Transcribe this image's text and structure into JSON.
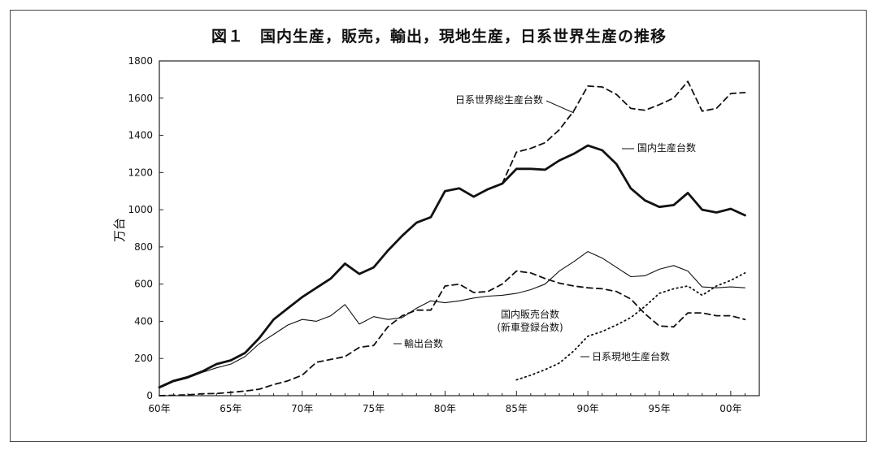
{
  "figure": {
    "title": "図１　国内生産，販売，輸出，現地生産，日系世界生産の推移"
  },
  "chart_data": {
    "type": "line",
    "ylabel": "万台",
    "ylim": [
      0,
      1800
    ],
    "y_ticks": [
      "0",
      "200",
      "400",
      "600",
      "800",
      "1000",
      "1200",
      "1400",
      "1600",
      "1800"
    ],
    "xlim": [
      1960,
      2002
    ],
    "x_ticks": [
      {
        "year": 1960,
        "label": "60年"
      },
      {
        "year": 1965,
        "label": "65年"
      },
      {
        "year": 1970,
        "label": "70年"
      },
      {
        "year": 1975,
        "label": "75年"
      },
      {
        "year": 1980,
        "label": "80年"
      },
      {
        "year": 1985,
        "label": "85年"
      },
      {
        "year": 1990,
        "label": "90年"
      },
      {
        "year": 1995,
        "label": "95年"
      },
      {
        "year": 2000,
        "label": "00年"
      }
    ],
    "grid": false,
    "series": [
      {
        "name": "日系世界総生産台数",
        "style": "dashed",
        "x": [
          1984,
          1985,
          1986,
          1987,
          1988,
          1989,
          1990,
          1991,
          1992,
          1993,
          1994,
          1995,
          1996,
          1997,
          1998,
          1999,
          2000,
          2001
        ],
        "y": [
          1140,
          1310,
          1330,
          1360,
          1430,
          1530,
          1665,
          1660,
          1620,
          1545,
          1535,
          1565,
          1600,
          1690,
          1530,
          1545,
          1625,
          1630
        ]
      },
      {
        "name": "国内生産台数",
        "style": "bold",
        "x": [
          1960,
          1961,
          1962,
          1963,
          1964,
          1965,
          1966,
          1967,
          1968,
          1969,
          1970,
          1971,
          1972,
          1973,
          1974,
          1975,
          1976,
          1977,
          1978,
          1979,
          1980,
          1981,
          1982,
          1983,
          1984,
          1985,
          1986,
          1987,
          1988,
          1989,
          1990,
          1991,
          1992,
          1993,
          1994,
          1995,
          1996,
          1997,
          1998,
          1999,
          2000,
          2001
        ],
        "y": [
          45,
          80,
          100,
          130,
          170,
          190,
          230,
          310,
          410,
          470,
          530,
          580,
          630,
          710,
          655,
          690,
          780,
          860,
          930,
          960,
          1100,
          1115,
          1070,
          1110,
          1140,
          1220,
          1220,
          1215,
          1265,
          1300,
          1345,
          1320,
          1245,
          1115,
          1050,
          1015,
          1025,
          1090,
          1000,
          985,
          1005,
          970
        ]
      },
      {
        "name": "国内販売台数\n(新車登録台数)",
        "style": "thin",
        "x": [
          1960,
          1961,
          1962,
          1963,
          1964,
          1965,
          1966,
          1967,
          1968,
          1969,
          1970,
          1971,
          1972,
          1973,
          1974,
          1975,
          1976,
          1977,
          1978,
          1979,
          1980,
          1981,
          1982,
          1983,
          1984,
          1985,
          1986,
          1987,
          1988,
          1989,
          1990,
          1991,
          1992,
          1993,
          1994,
          1995,
          1996,
          1997,
          1998,
          1999,
          2000,
          2001
        ],
        "y": [
          40,
          75,
          95,
          125,
          150,
          170,
          210,
          280,
          330,
          380,
          410,
          400,
          430,
          490,
          385,
          425,
          410,
          420,
          470,
          510,
          500,
          510,
          525,
          535,
          540,
          550,
          570,
          600,
          670,
          720,
          775,
          740,
          690,
          640,
          645,
          680,
          700,
          670,
          585,
          580,
          585,
          580
        ]
      },
      {
        "name": "輸出台数",
        "style": "dashed",
        "x": [
          1960,
          1961,
          1962,
          1963,
          1964,
          1965,
          1966,
          1967,
          1968,
          1969,
          1970,
          1971,
          1972,
          1973,
          1974,
          1975,
          1976,
          1977,
          1978,
          1979,
          1980,
          1981,
          1982,
          1983,
          1984,
          1985,
          1986,
          1987,
          1988,
          1989,
          1990,
          1991,
          1992,
          1993,
          1994,
          1995,
          1996,
          1997,
          1998,
          1999,
          2000,
          2001
        ],
        "y": [
          0,
          2,
          5,
          10,
          12,
          18,
          25,
          35,
          60,
          80,
          110,
          180,
          195,
          210,
          260,
          270,
          370,
          430,
          460,
          460,
          590,
          600,
          555,
          560,
          600,
          670,
          660,
          630,
          605,
          590,
          580,
          575,
          560,
          520,
          440,
          375,
          370,
          445,
          445,
          430,
          430,
          410
        ]
      },
      {
        "name": "日系現地生産台数",
        "style": "dotted",
        "x": [
          1985,
          1986,
          1987,
          1988,
          1989,
          1990,
          1991,
          1992,
          1993,
          1994,
          1995,
          1996,
          1997,
          1998,
          1999,
          2000,
          2001
        ],
        "y": [
          85,
          110,
          140,
          175,
          240,
          320,
          345,
          380,
          420,
          480,
          550,
          575,
          590,
          540,
          590,
          620,
          660
        ]
      }
    ],
    "annotations": [
      {
        "text": "日系世界総生産台数",
        "series": 0
      },
      {
        "text": "国内生産台数",
        "series": 1
      },
      {
        "text": "国内販売台数",
        "series": 2
      },
      {
        "text": "(新車登録台数)",
        "series": 2
      },
      {
        "text": "輸出台数",
        "series": 3
      },
      {
        "text": "日系現地生産台数",
        "series": 4
      }
    ]
  }
}
